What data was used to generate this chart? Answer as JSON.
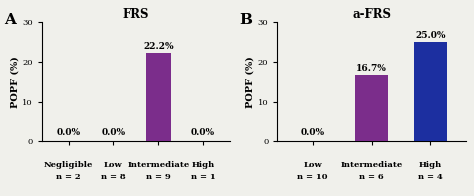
{
  "chart_A": {
    "title": "FRS",
    "panel_label": "A",
    "categories": [
      "Negligible",
      "Low",
      "Intermediate",
      "High"
    ],
    "n_labels": [
      "n = 2",
      "n = 8",
      "n = 9",
      "n = 1"
    ],
    "values": [
      0.0,
      0.0,
      22.2,
      0.0
    ],
    "value_labels": [
      "0.0%",
      "0.0%",
      "22.2%",
      "0.0%"
    ],
    "bar_colors": [
      "#7B2D8B",
      "#7B2D8B",
      "#7B2D8B",
      "#7B2D8B"
    ],
    "ylim": [
      0,
      30
    ],
    "yticks": [
      0,
      10,
      20,
      30
    ],
    "ylabel": "POPF (%)"
  },
  "chart_B": {
    "title": "a-FRS",
    "panel_label": "B",
    "categories": [
      "Low",
      "Intermediate",
      "High"
    ],
    "n_labels": [
      "n = 10",
      "n = 6",
      "n = 4"
    ],
    "values": [
      0.0,
      16.7,
      25.0
    ],
    "value_labels": [
      "0.0%",
      "16.7%",
      "25.0%"
    ],
    "bar_colors": [
      "#7B2D8B",
      "#7B2D8B",
      "#1C2FA0"
    ],
    "ylim": [
      0,
      30
    ],
    "yticks": [
      0,
      10,
      20,
      30
    ],
    "ylabel": "POPF (%)"
  },
  "background_color": "#f0f0eb",
  "bar_width": 0.55,
  "value_fontsize": 6.5,
  "title_fontsize": 8.5,
  "panel_label_fontsize": 11,
  "tick_fontsize": 6.0,
  "ylabel_fontsize": 7.0
}
